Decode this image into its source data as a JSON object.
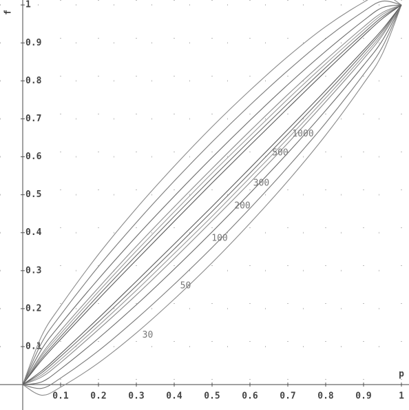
{
  "chart_data": {
    "type": "line",
    "x_label": "p",
    "y_label": "f",
    "x": [
      0,
      0.05,
      0.1,
      0.2,
      0.3,
      0.4,
      0.5,
      0.6,
      0.7,
      0.8,
      0.9,
      0.95,
      1
    ],
    "series": [
      {
        "name": "30",
        "color": "#8a8a8a",
        "upper": [
          0,
          0.128,
          0.207,
          0.343,
          0.464,
          0.575,
          0.679,
          0.775,
          0.864,
          0.943,
          1.007,
          1.028,
          1
        ],
        "lower": [
          0,
          -0.028,
          -0.007,
          0.057,
          0.136,
          0.225,
          0.321,
          0.425,
          0.536,
          0.657,
          0.793,
          0.872,
          1
        ]
      },
      {
        "name": "50",
        "color": "#7a7a7a",
        "upper": [
          0,
          0.11,
          0.183,
          0.311,
          0.427,
          0.536,
          0.639,
          0.736,
          0.827,
          0.911,
          0.983,
          1.01,
          1
        ],
        "lower": [
          0,
          -0.01,
          0.017,
          0.089,
          0.173,
          0.264,
          0.361,
          0.464,
          0.573,
          0.689,
          0.817,
          0.89,
          1
        ]
      },
      {
        "name": "100",
        "color": "#6a6a6a",
        "upper": [
          0,
          0.093,
          0.159,
          0.278,
          0.39,
          0.496,
          0.598,
          0.696,
          0.79,
          0.878,
          0.959,
          0.993,
          1
        ],
        "lower": [
          0,
          0.007,
          0.041,
          0.122,
          0.21,
          0.304,
          0.402,
          0.504,
          0.61,
          0.722,
          0.841,
          0.907,
          1
        ]
      },
      {
        "name": "200",
        "color": "#8a8a8a",
        "upper": [
          0,
          0.08,
          0.142,
          0.255,
          0.364,
          0.468,
          0.569,
          0.668,
          0.764,
          0.855,
          0.942,
          0.98,
          1
        ],
        "lower": [
          0,
          0.02,
          0.058,
          0.145,
          0.236,
          0.332,
          0.431,
          0.532,
          0.636,
          0.745,
          0.858,
          0.92,
          1
        ]
      },
      {
        "name": "300",
        "color": "#9a9a9a",
        "upper": [
          0,
          0.075,
          0.134,
          0.245,
          0.352,
          0.455,
          0.557,
          0.655,
          0.752,
          0.845,
          0.934,
          0.975,
          1
        ],
        "lower": [
          0,
          0.025,
          0.066,
          0.155,
          0.248,
          0.345,
          0.443,
          0.545,
          0.648,
          0.755,
          0.866,
          0.925,
          1
        ]
      },
      {
        "name": "500",
        "color": "#6a6a6a",
        "upper": [
          0,
          0.069,
          0.126,
          0.235,
          0.34,
          0.443,
          0.544,
          0.643,
          0.74,
          0.835,
          0.926,
          0.969,
          1
        ],
        "lower": [
          0,
          0.031,
          0.074,
          0.165,
          0.26,
          0.357,
          0.456,
          0.557,
          0.66,
          0.765,
          0.874,
          0.931,
          1
        ]
      },
      {
        "name": "1000",
        "color": "#5a5a5a",
        "upper": [
          0,
          0.064,
          0.119,
          0.225,
          0.328,
          0.43,
          0.531,
          0.63,
          0.728,
          0.825,
          0.919,
          0.964,
          1
        ],
        "lower": [
          0,
          0.036,
          0.081,
          0.175,
          0.272,
          0.37,
          0.469,
          0.57,
          0.672,
          0.775,
          0.881,
          0.936,
          1
        ]
      }
    ],
    "xlim": [
      -0.06,
      1.02
    ],
    "ylim": [
      -0.067,
      1.013
    ],
    "xticks": [
      0.1,
      0.2,
      0.3,
      0.4,
      0.5,
      0.6,
      0.7,
      0.8,
      0.9,
      1
    ],
    "yticks": [
      0.1,
      0.2,
      0.3,
      0.4,
      0.5,
      0.6,
      0.7,
      0.8,
      0.9,
      1
    ],
    "grid": true
  }
}
